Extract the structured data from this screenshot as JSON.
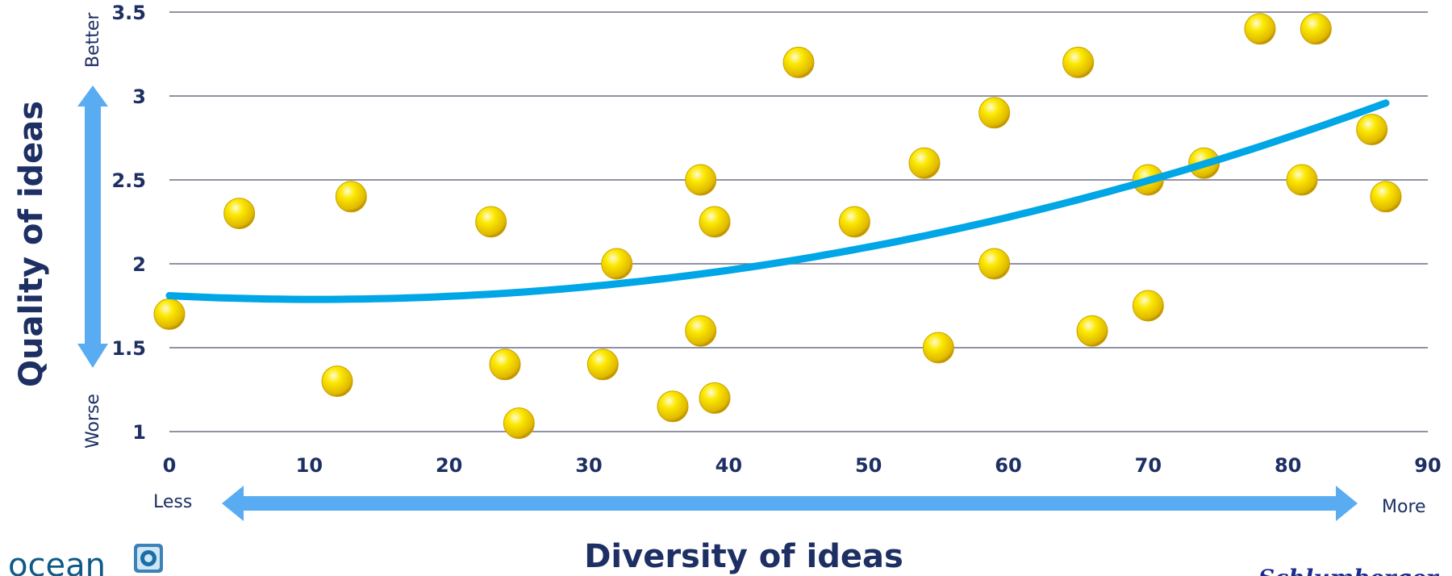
{
  "chart_data": {
    "type": "scatter",
    "xlabel": "Diversity of ideas",
    "ylabel": "Quality of ideas",
    "xlim": [
      0,
      90
    ],
    "ylim": [
      1,
      3.5
    ],
    "xticks": [
      "0",
      "10",
      "20",
      "30",
      "40",
      "50",
      "60",
      "70",
      "80",
      "90"
    ],
    "yticks": [
      "1",
      "1.5",
      "2",
      "2.5",
      "3",
      "3.5"
    ],
    "grid": "horizontal",
    "annotations": {
      "x_low": "Less",
      "x_high": "More",
      "y_low": "Worse",
      "y_high": "Better"
    },
    "series": [
      {
        "x": [
          0,
          5,
          12,
          13,
          23,
          24,
          25,
          31,
          32,
          36,
          38,
          38,
          39,
          39,
          45,
          49,
          54,
          55,
          59,
          59,
          65,
          66,
          70,
          70,
          74,
          78,
          81,
          82,
          86,
          87
        ],
        "y": [
          1.7,
          2.3,
          1.3,
          2.4,
          2.25,
          1.4,
          1.05,
          1.4,
          2.0,
          1.15,
          2.5,
          1.6,
          2.25,
          1.2,
          3.2,
          2.25,
          2.6,
          1.5,
          2.9,
          2.0,
          3.2,
          1.6,
          2.5,
          1.75,
          2.6,
          3.4,
          2.5,
          3.4,
          2.8,
          2.4
        ]
      }
    ],
    "trendline": {
      "type": "polynomial",
      "x": [
        0,
        87
      ],
      "coefficients": [
        1.81,
        -0.0042,
        0.0002
      ],
      "color": "#00a6e6"
    },
    "colors": {
      "point": "#f2d600",
      "trend": "#00a6e6",
      "arrow": "#5aacf2",
      "text": "#1d2f63",
      "grid": "#6b6f87"
    }
  },
  "logo": {
    "text": "ocean",
    "icon": "ocean-square-logo-icon"
  },
  "brand": {
    "text": "Schlumberger"
  }
}
